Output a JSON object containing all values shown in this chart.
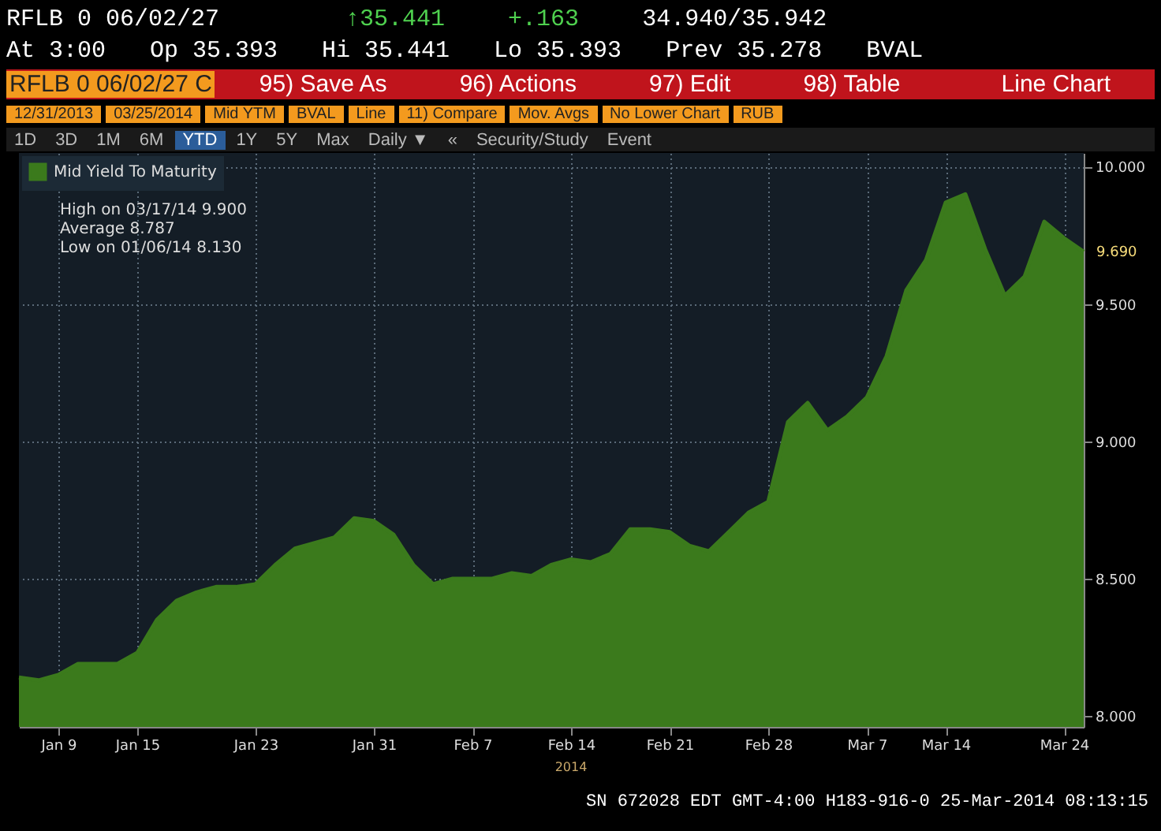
{
  "chart_data": {
    "type": "area",
    "title": "RFLB 0 06/02/27",
    "annotations": [
      "↑35.441",
      "+.163",
      "34.940/35.942",
      "At 3:00",
      "Op 35.393",
      "Hi 35.441",
      "Lo 35.393",
      "Prev 35.278",
      "BVAL",
      "RFLB 0 06/02/27 C",
      "95) Save As",
      "96) Actions",
      "97) Edit",
      "98) Table",
      "Line Chart",
      "12/31/2013",
      "03/25/2014",
      "Mid YTM",
      "BVAL",
      "Line",
      "11) Compare",
      "Mov. Avgs",
      "No Lower Chart",
      "RUB",
      "1D",
      "3D",
      "1M",
      "6M",
      "YTD",
      "1Y",
      "5Y",
      "Max",
      "Daily ▼",
      "«",
      "Security/Study",
      "Event",
      "High on 03/17/14   9.900",
      "Average   8.787",
      "Low on 01/06/14   8.130",
      "9.690",
      "2014",
      "SN 672028 EDT  GMT-4:00 H183-916-0 25-Mar-2014 08:13:15"
    ],
    "categories": [
      null,
      null,
      "Jan 9",
      null,
      null,
      null,
      "Jan 15",
      null,
      null,
      null,
      null,
      null,
      "Jan 23",
      null,
      null,
      null,
      null,
      null,
      "Jan 31",
      null,
      null,
      null,
      null,
      "Feb 7",
      null,
      null,
      null,
      null,
      "Feb 14",
      null,
      null,
      null,
      null,
      "Feb 21",
      null,
      null,
      null,
      null,
      "Feb 28",
      null,
      null,
      null,
      null,
      "Mar 7",
      null,
      null,
      null,
      "Mar 14",
      null,
      null,
      null,
      null,
      null,
      "Mar 24",
      null
    ],
    "series": [
      {
        "name": "Mid Yield To Maturity",
        "color": "#3b7a1c",
        "values": [
          8.14,
          8.13,
          8.15,
          8.19,
          8.19,
          8.19,
          8.23,
          8.35,
          8.42,
          8.45,
          8.47,
          8.47,
          8.48,
          8.55,
          8.61,
          8.63,
          8.65,
          8.72,
          8.71,
          8.66,
          8.55,
          8.48,
          8.5,
          8.5,
          8.5,
          8.52,
          8.51,
          8.55,
          8.57,
          8.56,
          8.59,
          8.68,
          8.68,
          8.67,
          8.62,
          8.6,
          8.67,
          8.74,
          8.78,
          9.07,
          9.14,
          9.04,
          9.09,
          9.16,
          9.31,
          9.55,
          9.66,
          9.87,
          9.9,
          9.7,
          9.53,
          9.6,
          9.8,
          9.74,
          9.69
        ]
      }
    ],
    "ylim": [
      7.96,
      10.05
    ],
    "yticks": [
      {
        "value": 8,
        "label": "8.000"
      },
      {
        "value": 8.5,
        "label": "8.500"
      },
      {
        "value": 9,
        "label": "9.000"
      },
      {
        "value": 9.5,
        "label": "9.500"
      },
      {
        "value": 10,
        "label": "10.000"
      }
    ],
    "grid": true,
    "legend": "top left"
  }
}
